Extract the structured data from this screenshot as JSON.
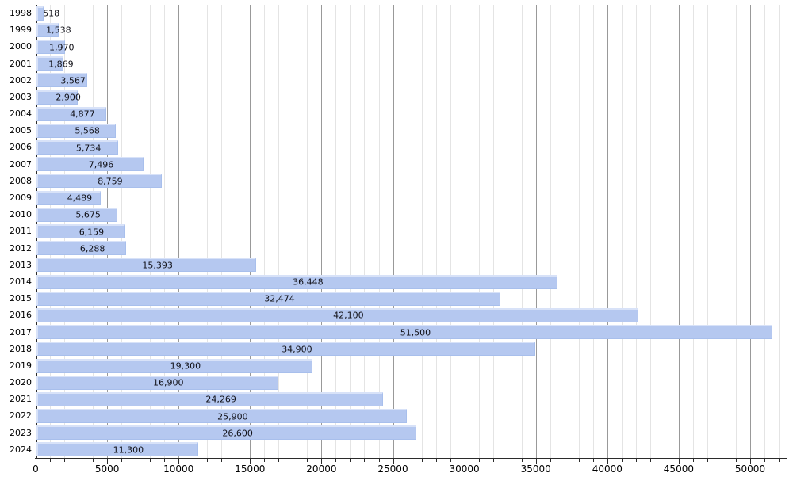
{
  "chart_data": {
    "type": "bar",
    "orientation": "horizontal",
    "title": "",
    "xlabel": "",
    "ylabel": "",
    "categories": [
      "1998",
      "1999",
      "2000",
      "2001",
      "2002",
      "2003",
      "2004",
      "2005",
      "2006",
      "2007",
      "2008",
      "2009",
      "2010",
      "2011",
      "2012",
      "2013",
      "2014",
      "2015",
      "2016",
      "2017",
      "2018",
      "2019",
      "2020",
      "2021",
      "2022",
      "2023",
      "2024"
    ],
    "values": [
      518,
      1538,
      1970,
      1869,
      3567,
      2900,
      4877,
      5568,
      5734,
      7496,
      8759,
      4489,
      5675,
      6159,
      6288,
      15393,
      36448,
      32474,
      42100,
      51500,
      34900,
      19300,
      16900,
      24269,
      25900,
      26600,
      11300
    ],
    "value_labels": [
      "518",
      "1,538",
      "1,970",
      "1,869",
      "3,567",
      "2,900",
      "4,877",
      "5,568",
      "5,734",
      "7,496",
      "8,759",
      "4,489",
      "5,675",
      "6,159",
      "6,288",
      "15,393",
      "36,448",
      "32,474",
      "42,100",
      "51,500",
      "34,900",
      "19,300",
      "16,900",
      "24,269",
      "25,900",
      "26,600",
      "11,300"
    ],
    "xlim": [
      0,
      52000
    ],
    "x_minor_tick_interval": 1000,
    "x_major_tick_interval": 5000,
    "x_tick_labels": [
      "0",
      "5000",
      "10000",
      "15000",
      "20000",
      "25000",
      "30000",
      "35000",
      "40000",
      "45000",
      "50000"
    ],
    "grid": "vertical-minor-and-major",
    "legend": "none",
    "colors": {
      "bar_fill": "#b5c8f0",
      "bar_highlight": "#d8e2f8",
      "bar_edge": "#a8bfec",
      "grid_minor": "#e4e4e4",
      "grid_major": "#999999",
      "axis": "#2b2b2b",
      "label_text": "#111118",
      "background": "#ffffff"
    }
  }
}
